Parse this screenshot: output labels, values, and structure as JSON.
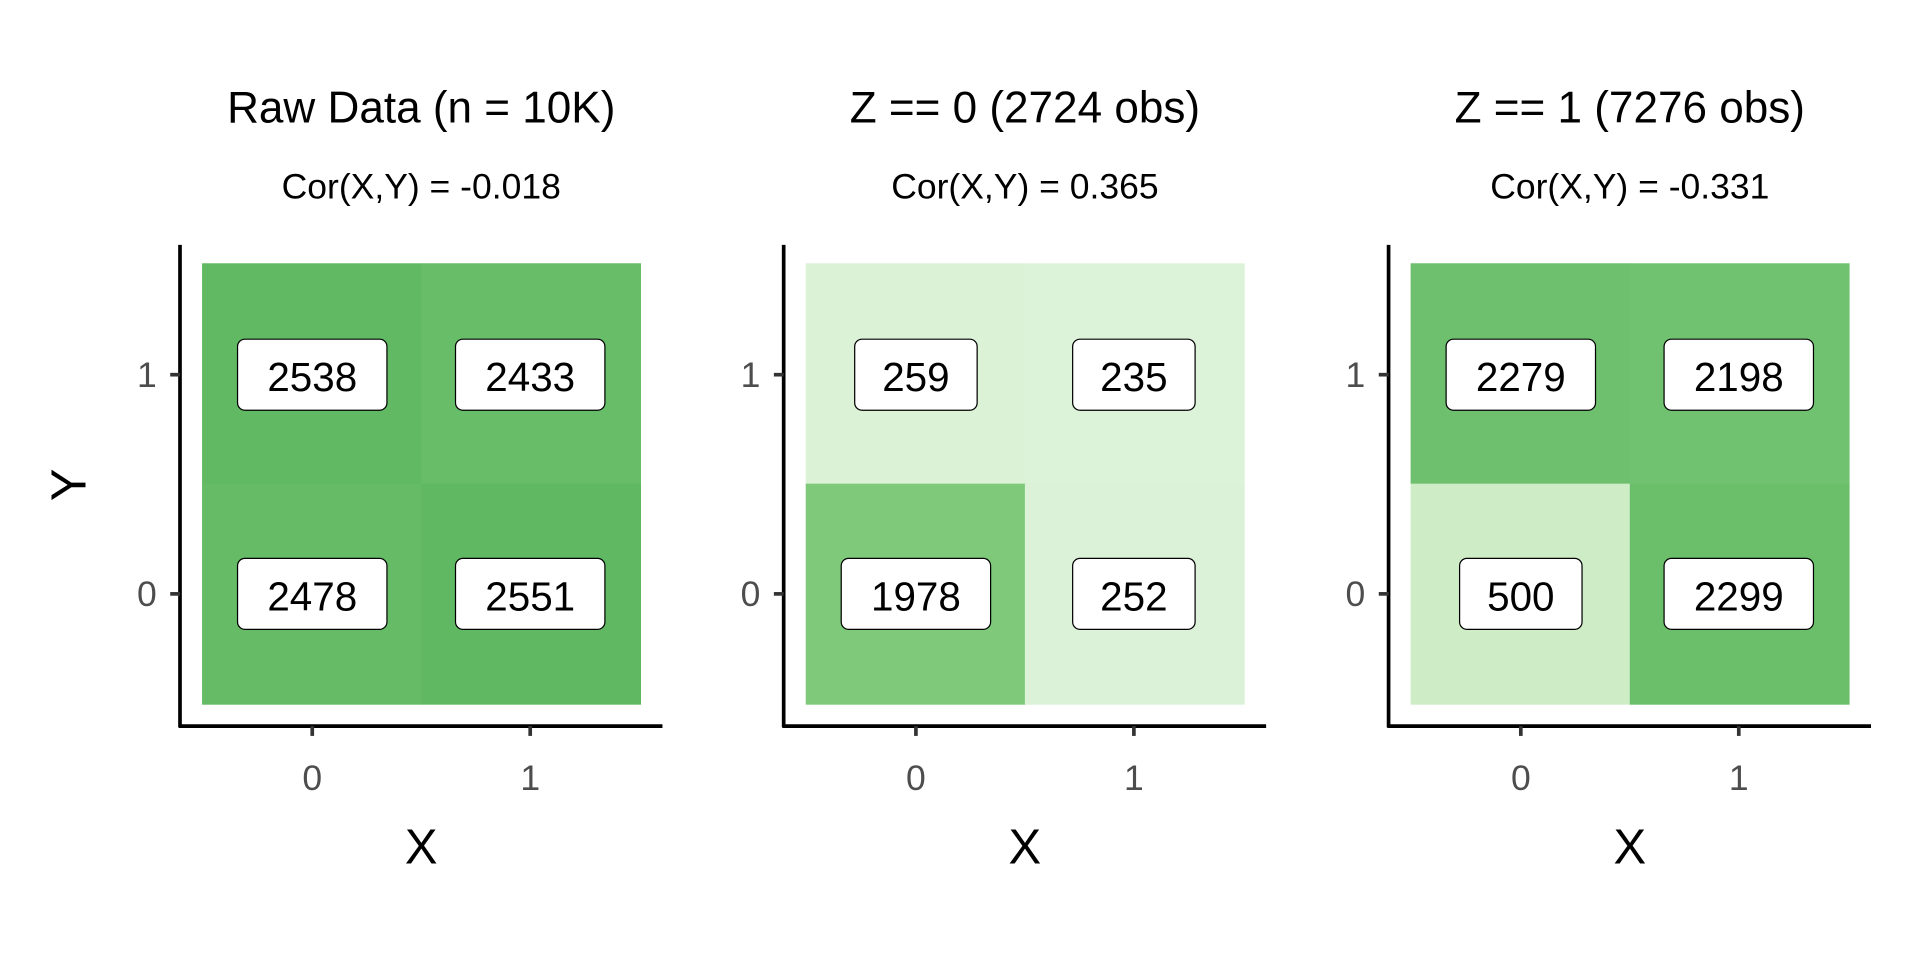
{
  "chart_data": [
    {
      "type": "heatmap",
      "title": "Raw Data (n = 10K)",
      "subtitle": "Cor(X,Y) = -0.018",
      "xlabel": "X",
      "ylabel": "Y",
      "x_ticks": [
        "0",
        "1"
      ],
      "y_ticks": [
        "0",
        "1"
      ],
      "cells": [
        {
          "x": 0,
          "y": 1,
          "count": 2538,
          "color": "#62b964"
        },
        {
          "x": 1,
          "y": 1,
          "count": 2433,
          "color": "#68bd69"
        },
        {
          "x": 0,
          "y": 0,
          "count": 2478,
          "color": "#65bb66"
        },
        {
          "x": 1,
          "y": 0,
          "count": 2551,
          "color": "#61b862"
        }
      ]
    },
    {
      "type": "heatmap",
      "title": "Z == 0 (2724 obs)",
      "subtitle": "Cor(X,Y) = 0.365",
      "xlabel": "X",
      "ylabel": "",
      "x_ticks": [
        "0",
        "1"
      ],
      "y_ticks": [
        "0",
        "1"
      ],
      "cells": [
        {
          "x": 0,
          "y": 1,
          "count": 259,
          "color": "#dbf2d7"
        },
        {
          "x": 1,
          "y": 1,
          "count": 235,
          "color": "#ddf3d9"
        },
        {
          "x": 0,
          "y": 0,
          "count": 1978,
          "color": "#7fc97b"
        },
        {
          "x": 1,
          "y": 0,
          "count": 252,
          "color": "#dcf2d8"
        }
      ]
    },
    {
      "type": "heatmap",
      "title": "Z == 1 (7276 obs)",
      "subtitle": "Cor(X,Y) = -0.331",
      "xlabel": "X",
      "ylabel": "",
      "x_ticks": [
        "0",
        "1"
      ],
      "y_ticks": [
        "0",
        "1"
      ],
      "cells": [
        {
          "x": 0,
          "y": 1,
          "count": 2279,
          "color": "#6ec06e"
        },
        {
          "x": 1,
          "y": 1,
          "count": 2198,
          "color": "#71c270"
        },
        {
          "x": 0,
          "y": 0,
          "count": 500,
          "color": "#ceecc6"
        },
        {
          "x": 1,
          "y": 0,
          "count": 2299,
          "color": "#6bbf6b"
        }
      ]
    }
  ]
}
